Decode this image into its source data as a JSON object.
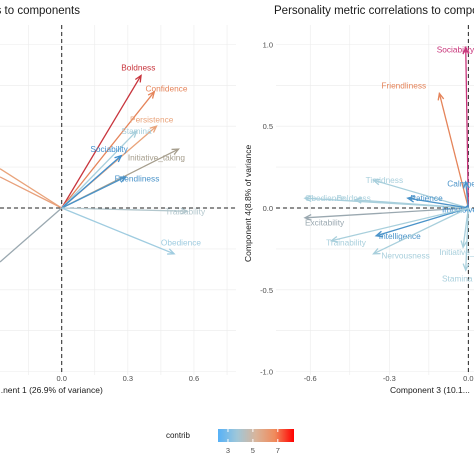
{
  "chart_data": [
    {
      "type": "scatter",
      "subtype": "pca-variable-arrows",
      "title": "...s to components",
      "xlabel": "...nent 1 (26.9% of variance)",
      "ylabel": "",
      "x_ticks": [
        "0.0",
        "0.3",
        "0.6"
      ],
      "x_tick_values": [
        0,
        0.3,
        0.6
      ],
      "xlim": [
        -0.28,
        0.7
      ],
      "ylim": [
        -1.1,
        1.1
      ],
      "grid": true,
      "arrows": [
        {
          "name": "Boldness",
          "x": 0.36,
          "y": 0.81,
          "contrib": 7.6,
          "color": "#c8353d",
          "label_x": 0.27,
          "label_y": 0.86
        },
        {
          "name": "Confidence",
          "x": 0.42,
          "y": 0.71,
          "contrib": 6.8,
          "color": "#e5845a",
          "label_x": 0.38,
          "label_y": 0.73
        },
        {
          "name": "Persistence",
          "x": 0.43,
          "y": 0.5,
          "contrib": 6.2,
          "color": "#e9a37a",
          "label_x": 0.31,
          "label_y": 0.54
        },
        {
          "name": "Stamina",
          "x": 0.34,
          "y": 0.47,
          "contrib": 4.2,
          "color": "#a8cfdc",
          "label_x": 0.27,
          "label_y": 0.47
        },
        {
          "name": "Initiative_taking",
          "x": 0.53,
          "y": 0.36,
          "contrib": 5.6,
          "color": "#a69e8d",
          "label_x": 0.3,
          "label_y": 0.31
        },
        {
          "name": "Sociability",
          "x": 0.27,
          "y": 0.32,
          "contrib": 3.1,
          "color": "#3e8fce",
          "label_x": 0.13,
          "label_y": 0.36
        },
        {
          "name": "Friendliness",
          "x": 0.29,
          "y": 0.19,
          "contrib": 3.2,
          "color": "#4a93c9",
          "label_x": 0.24,
          "label_y": 0.18
        },
        {
          "name": "Trainability",
          "x": 0.57,
          "y": -0.02,
          "contrib": 4.6,
          "color": "#b3c7cd",
          "label_x": 0.47,
          "label_y": -0.02
        },
        {
          "name": "Obedience",
          "x": 0.51,
          "y": -0.28,
          "contrib": 4.3,
          "color": "#9fcce0",
          "label_x": 0.45,
          "label_y": -0.21
        }
      ],
      "partial_arrows": [
        {
          "x": -0.28,
          "y": 0.24,
          "color": "#e9a37a"
        },
        {
          "x": -0.28,
          "y": 0.19,
          "color": "#e8a07b"
        },
        {
          "x": -0.28,
          "y": -0.33,
          "color": "#9aa8b0"
        }
      ]
    },
    {
      "type": "scatter",
      "subtype": "pca-variable-arrows",
      "title": "Personality metric correlations to compo...",
      "xlabel": "Component 3 (10.1...",
      "ylabel": "Component 4(8.8% of variance",
      "x_ticks": [
        "-0.6",
        "-0.3",
        "0.0"
      ],
      "x_tick_values": [
        -0.6,
        -0.3,
        0
      ],
      "y_ticks": [
        "1.0",
        "0.5",
        "0.0",
        "-0.5",
        "-1.0"
      ],
      "y_tick_values": [
        1,
        0.5,
        0,
        -0.5,
        -1
      ],
      "xlim": [
        -0.73,
        0.01
      ],
      "ylim": [
        -1.1,
        1.1
      ],
      "grid": true,
      "arrows": [
        {
          "name": "Sociability",
          "x": -0.01,
          "y": 0.98,
          "contrib": 7.7,
          "color": "#c8347a",
          "label_x": -0.12,
          "label_y": 0.97
        },
        {
          "name": "Friendliness",
          "x": -0.11,
          "y": 0.7,
          "contrib": 6.6,
          "color": "#e5845a",
          "label_x": -0.33,
          "label_y": 0.75
        },
        {
          "name": "Calmness",
          "x": -0.01,
          "y": 0.16,
          "contrib": 3.5,
          "color": "#4a93c9",
          "label_x": -0.08,
          "label_y": 0.15
        },
        {
          "name": "Timidness",
          "x": -0.36,
          "y": 0.17,
          "contrib": 3.3,
          "color": "#a8cfdc",
          "label_x": -0.39,
          "label_y": 0.17
        },
        {
          "name": "Obedience",
          "x": -0.62,
          "y": 0.06,
          "contrib": 3.3,
          "color": "#a8cfdc",
          "label_x": -0.62,
          "label_y": 0.06
        },
        {
          "name": "Boldness",
          "x": -0.43,
          "y": 0.05,
          "contrib": 3.2,
          "color": "#a8cfdc",
          "label_x": -0.5,
          "label_y": 0.06
        },
        {
          "name": "Patience",
          "x": -0.23,
          "y": 0.06,
          "contrib": 3.6,
          "color": "#4a93c9",
          "label_x": -0.22,
          "label_y": 0.06
        },
        {
          "name": "Excitability",
          "x": -0.62,
          "y": -0.06,
          "contrib": 3.2,
          "color": "#9aa8b0",
          "label_x": -0.62,
          "label_y": -0.09
        },
        {
          "name": "Impulsiveness",
          "x": -0.02,
          "y": -0.01,
          "contrib": 3.7,
          "color": "#3e8fce",
          "label_x": -0.1,
          "label_y": -0.01
        },
        {
          "name": "Intelligence",
          "x": -0.35,
          "y": -0.17,
          "contrib": 3.5,
          "color": "#4a93c9",
          "label_x": -0.34,
          "label_y": -0.17
        },
        {
          "name": "Trainability",
          "x": -0.52,
          "y": -0.2,
          "contrib": 3.2,
          "color": "#a8cfdc",
          "label_x": -0.54,
          "label_y": -0.21
        },
        {
          "name": "Nervousness",
          "x": -0.36,
          "y": -0.28,
          "contrib": 3.3,
          "color": "#a8cfdc",
          "label_x": -0.33,
          "label_y": -0.29
        },
        {
          "name": "Initiative_taking",
          "x": -0.02,
          "y": -0.24,
          "contrib": 3.4,
          "color": "#a8cfdc",
          "label_x": -0.11,
          "label_y": -0.27
        },
        {
          "name": "Stamina",
          "x": -0.01,
          "y": -0.38,
          "contrib": 3.3,
          "color": "#a8cfdc",
          "label_x": -0.1,
          "label_y": -0.43
        }
      ]
    }
  ],
  "legend": {
    "title": "contrib",
    "ticks": [
      "3",
      "5",
      "7"
    ],
    "tick_values": [
      3,
      5,
      7
    ],
    "range": [
      2.2,
      8.3
    ],
    "colors": [
      "#56b1f7",
      "#9fc7d9",
      "#d9b49a",
      "#f08a5b",
      "#ff0000"
    ]
  }
}
